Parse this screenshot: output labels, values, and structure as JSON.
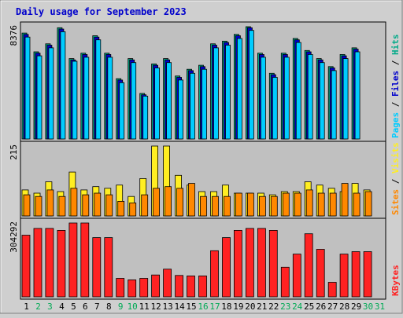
{
  "title": "Daily usage for September 2023",
  "colors": {
    "background": "#cfcfcf",
    "panel": "#c0c0c0",
    "title": "#0000cc",
    "pages": "#00ccff",
    "files": "#0000cc",
    "hits": "#00aa88",
    "visits": "#ffee22",
    "sites": "#ff8800",
    "kbytes": "#ff2222",
    "weekend_day": "#00aa55",
    "weekday": "#000000"
  },
  "panels": {
    "usage": {
      "max_label": "8376",
      "legend": [
        {
          "text": "Pages",
          "color": "#00ccff"
        },
        {
          "text": " / ",
          "color": "#000000"
        },
        {
          "text": "Files",
          "color": "#0000cc"
        },
        {
          "text": " / ",
          "color": "#000000"
        },
        {
          "text": "Hits",
          "color": "#00aa88"
        }
      ]
    },
    "visits": {
      "max_label": "215",
      "legend": [
        {
          "text": "Sites",
          "color": "#ff8800"
        },
        {
          "text": " / ",
          "color": "#000000"
        },
        {
          "text": "Visits",
          "color": "#ffee22"
        }
      ]
    },
    "kbytes": {
      "max_label": "304292",
      "legend": [
        {
          "text": "KBytes",
          "color": "#ff2222"
        }
      ]
    }
  },
  "chart_data": {
    "type": "bar",
    "title": "Daily usage for September 2023",
    "categories": [
      "1",
      "2",
      "3",
      "4",
      "5",
      "6",
      "7",
      "8",
      "9",
      "10",
      "11",
      "12",
      "13",
      "14",
      "15",
      "16",
      "17",
      "18",
      "19",
      "20",
      "21",
      "22",
      "23",
      "24",
      "25",
      "26",
      "27",
      "28",
      "29",
      "30",
      "31"
    ],
    "weekend_days": [
      "2",
      "3",
      "9",
      "10",
      "16",
      "17",
      "23",
      "24",
      "30",
      "31"
    ],
    "panels": [
      {
        "id": "usage",
        "ylim": [
          0,
          8376
        ],
        "series": [
          {
            "name": "Hits",
            "color": "#00aa88",
            "values": [
              7900,
              6500,
              7100,
              8300,
              6000,
              6400,
              7700,
              6400,
              4500,
              6000,
              3400,
              5600,
              6000,
              4700,
              5200,
              5500,
              7100,
              7300,
              7800,
              8376,
              6400,
              4900,
              6400,
              7500,
              6600,
              6000,
              5400,
              6300,
              6800,
              0,
              0
            ]
          },
          {
            "name": "Files",
            "color": "#0000cc",
            "values": [
              7800,
              6400,
              7000,
              8200,
              5900,
              6300,
              7600,
              6300,
              4400,
              5900,
              3300,
              5500,
              5900,
              4600,
              5100,
              5400,
              7000,
              7200,
              7700,
              8300,
              6300,
              4800,
              6300,
              7400,
              6500,
              5900,
              5300,
              6200,
              6700,
              0,
              0
            ]
          },
          {
            "name": "Pages",
            "color": "#00ccff",
            "values": [
              7600,
              6200,
              6800,
              8000,
              5800,
              6100,
              7400,
              6100,
              4200,
              5700,
              3200,
              5300,
              5700,
              4400,
              4900,
              5200,
              6800,
              7000,
              7500,
              8100,
              6100,
              4600,
              6100,
              7200,
              6300,
              5700,
              5100,
              6000,
              6500,
              0,
              0
            ]
          }
        ]
      },
      {
        "id": "visits",
        "ylim": [
          0,
          215
        ],
        "series": [
          {
            "name": "Visits",
            "color": "#ffee22",
            "values": [
              80,
              70,
              105,
              75,
              135,
              80,
              90,
              85,
              95,
              60,
              115,
              215,
              215,
              125,
              95,
              75,
              75,
              95,
              70,
              70,
              70,
              65,
              75,
              75,
              105,
              95,
              85,
              75,
              100,
              80,
              0
            ]
          },
          {
            "name": "Sites",
            "color": "#ff8800",
            "values": [
              65,
              60,
              80,
              60,
              85,
              65,
              70,
              65,
              45,
              40,
              65,
              85,
              90,
              85,
              100,
              60,
              60,
              60,
              70,
              70,
              60,
              60,
              70,
              70,
              80,
              70,
              70,
              100,
              70,
              75,
              0
            ]
          }
        ]
      },
      {
        "id": "kbytes",
        "ylim": [
          0,
          304292
        ],
        "series": [
          {
            "name": "KBytes",
            "color": "#ff2222",
            "values": [
              254000,
              282000,
              282000,
              274000,
              304292,
              304292,
              244000,
              244000,
              76000,
              70000,
              76000,
              90000,
              114000,
              88000,
              86000,
              86000,
              190000,
              244000,
              274000,
              282000,
              282000,
              274000,
              122000,
              176000,
              260000,
              196000,
              60000,
              176000,
              186000,
              186000,
              0
            ]
          }
        ]
      }
    ]
  }
}
